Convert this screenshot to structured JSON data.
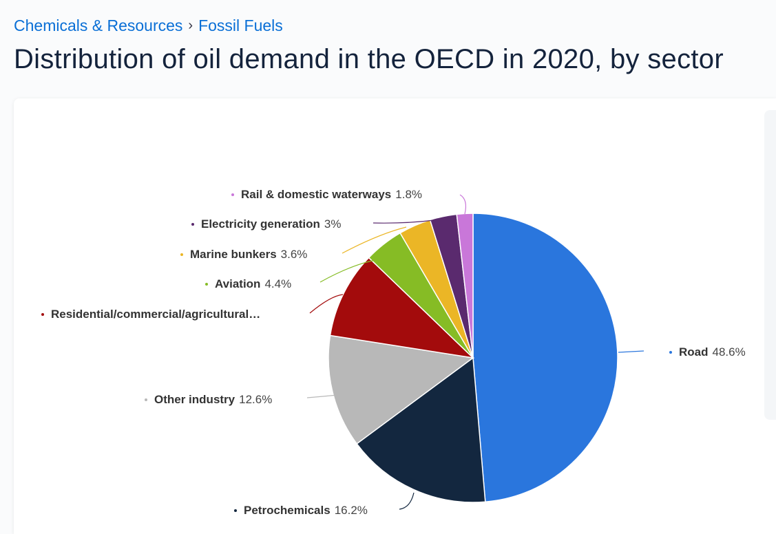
{
  "breadcrumb": {
    "items": [
      "Chemicals & Resources",
      "Fossil Fuels"
    ],
    "separator": "›"
  },
  "title": "Distribution of oil demand in the OECD in 2020, by sector",
  "chart_data": {
    "type": "pie",
    "title": "Distribution of oil demand in the OECD in 2020, by sector",
    "slices": [
      {
        "label": "Road",
        "value": 48.6,
        "value_label": "48.6%",
        "color": "#2a76dd"
      },
      {
        "label": "Petrochemicals",
        "value": 16.2,
        "value_label": "16.2%",
        "color": "#13273f"
      },
      {
        "label": "Other industry",
        "value": 12.6,
        "value_label": "12.6%",
        "color": "#b8b8b8"
      },
      {
        "label": "Residential/commercial/agricultural…",
        "value": 9.7,
        "value_label": "",
        "color": "#a30b0c"
      },
      {
        "label": "Aviation",
        "value": 4.4,
        "value_label": "4.4%",
        "color": "#86bc25"
      },
      {
        "label": "Marine bunkers",
        "value": 3.6,
        "value_label": "3.6%",
        "color": "#ebb626"
      },
      {
        "label": "Electricity generation",
        "value": 3.0,
        "value_label": "3%",
        "color": "#5a2a6e"
      },
      {
        "label": "Rail & domestic waterways",
        "value": 1.8,
        "value_label": "1.8%",
        "color": "#c977d9"
      }
    ],
    "start_angle_deg": 0,
    "direction": "clockwise"
  }
}
